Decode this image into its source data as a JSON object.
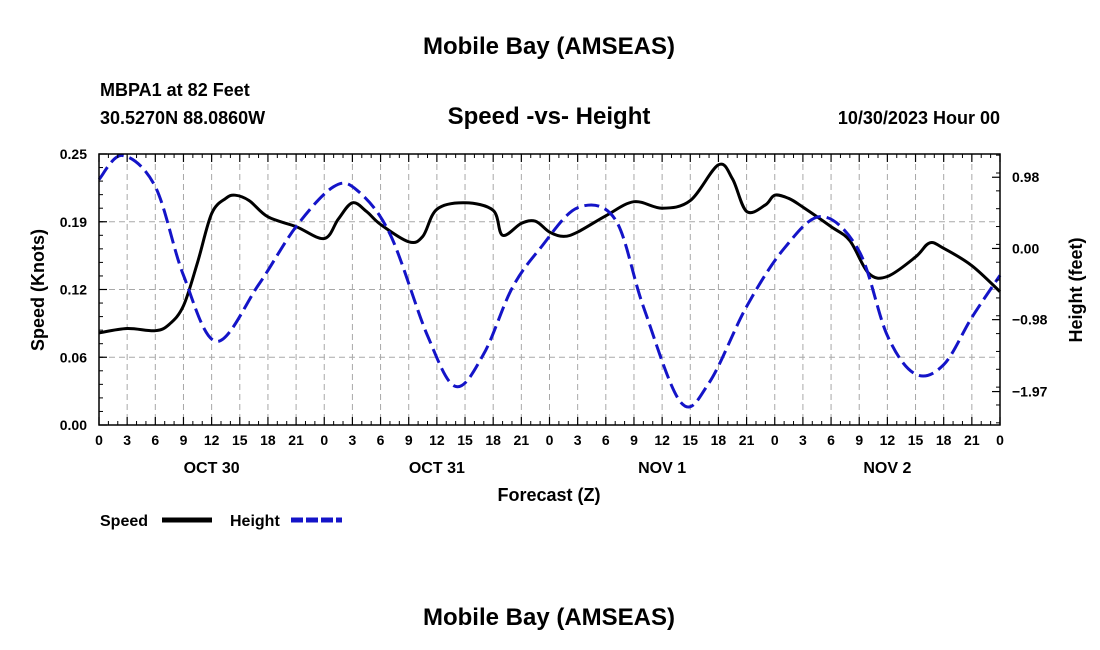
{
  "page": {
    "title": "Mobile Bay (AMSEAS)",
    "station": "MBPA1 at 82 Feet",
    "coords": "30.5270N  88.0860W",
    "subtitle": "Speed -vs- Height",
    "datetime": "10/30/2023 Hour 00",
    "footer_title": "Mobile Bay (AMSEAS)"
  },
  "chart_data": {
    "type": "line",
    "title": "Speed -vs- Height",
    "xlabel": "Forecast (Z)",
    "ylabel": "Speed (Knots)",
    "y2label": "Height (feet)",
    "xlim": [
      0,
      96
    ],
    "ylim": [
      0,
      0.25
    ],
    "y2lim": [
      -2.43,
      1.3
    ],
    "grid": true,
    "legend_position": "bottom-left",
    "x_tick_labels": [
      "0",
      "3",
      "6",
      "9",
      "12",
      "15",
      "18",
      "21",
      "0",
      "3",
      "6",
      "9",
      "12",
      "15",
      "18",
      "21",
      "0",
      "3",
      "6",
      "9",
      "12",
      "15",
      "18",
      "21",
      "0",
      "3",
      "6",
      "9",
      "12",
      "15",
      "18",
      "21",
      "0"
    ],
    "day_labels": [
      {
        "label": "OCT 30",
        "x": 12
      },
      {
        "label": "OCT 31",
        "x": 36
      },
      {
        "label": "NOV 1",
        "x": 60
      },
      {
        "label": "NOV 2",
        "x": 84
      }
    ],
    "y_tick_labels": [
      "0.00",
      "0.06",
      "0.12",
      "0.19",
      "0.25"
    ],
    "y_ticks": [
      0,
      0.0625,
      0.125,
      0.1875,
      0.25
    ],
    "y2_tick_labels": [
      "−1.97",
      "−0.98",
      "0.00",
      "0.98"
    ],
    "y2_ticks": [
      -1.97,
      -0.98,
      0.0,
      0.98
    ],
    "series": [
      {
        "name": "Speed",
        "axis": "left",
        "color": "#000000",
        "dash": "solid",
        "x": [
          0,
          3,
          6,
          7.5,
          9,
          10.5,
          12,
          13.5,
          14.5,
          16,
          18,
          21,
          24,
          25.5,
          27,
          28.5,
          30,
          33,
          34.5,
          36,
          39,
          42,
          43,
          45,
          46.5,
          48,
          49.5,
          51,
          54,
          57,
          60,
          63,
          66,
          67.5,
          69,
          71,
          72,
          73.5,
          75,
          78,
          80,
          82,
          84,
          87,
          88.5,
          90,
          93,
          96
        ],
        "y": [
          0.085,
          0.089,
          0.087,
          0.093,
          0.11,
          0.15,
          0.195,
          0.209,
          0.212,
          0.207,
          0.192,
          0.183,
          0.172,
          0.19,
          0.205,
          0.197,
          0.185,
          0.169,
          0.174,
          0.199,
          0.205,
          0.198,
          0.175,
          0.186,
          0.188,
          0.178,
          0.174,
          0.178,
          0.193,
          0.206,
          0.2,
          0.207,
          0.24,
          0.227,
          0.197,
          0.203,
          0.212,
          0.209,
          0.201,
          0.183,
          0.17,
          0.14,
          0.137,
          0.155,
          0.168,
          0.163,
          0.147,
          0.123
        ]
      },
      {
        "name": "Height",
        "axis": "right",
        "color": "#1414c8",
        "dash": "dashed",
        "x": [
          0,
          2.5,
          6,
          9,
          12.5,
          17,
          21,
          25,
          27.5,
          31,
          35,
          38,
          41,
          44,
          47,
          51,
          55,
          58,
          62,
          65,
          69,
          73,
          77,
          81,
          84,
          87,
          90,
          93,
          96
        ],
        "y": [
          0.95,
          1.28,
          0.85,
          -0.37,
          -1.28,
          -0.5,
          0.3,
          0.85,
          0.8,
          0.2,
          -1.2,
          -1.9,
          -1.45,
          -0.55,
          0.0,
          0.56,
          0.4,
          -0.8,
          -2.12,
          -1.85,
          -0.8,
          0.0,
          0.44,
          -0.04,
          -1.2,
          -1.73,
          -1.6,
          -0.95,
          -0.37
        ]
      }
    ]
  }
}
